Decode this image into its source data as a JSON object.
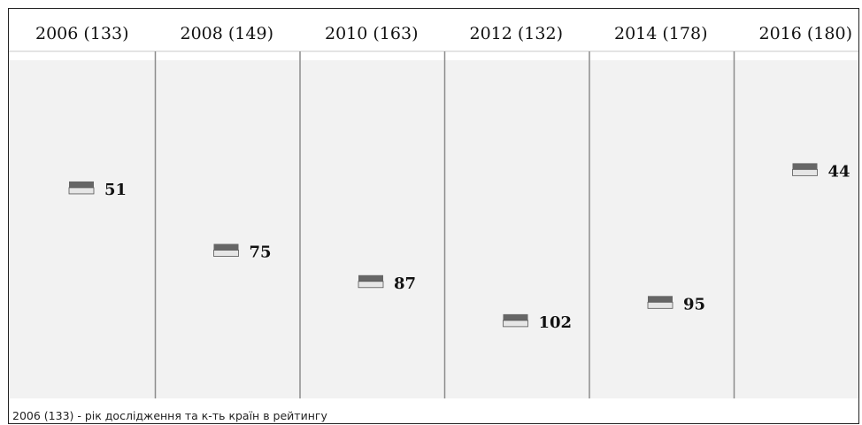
{
  "chart_data": {
    "type": "scatter",
    "categories": [
      "2006 (133)",
      "2008 (149)",
      "2010 (163)",
      "2012 (132)",
      "2014 (178)",
      "2016 (180)"
    ],
    "values": [
      51,
      75,
      87,
      102,
      95,
      44
    ],
    "colors": {
      "column_bg": "#f2f2f2",
      "divider": "#8c8c8c",
      "marker_dark": "#666666",
      "marker_light": "#e6e6e6"
    }
  },
  "caption": "2006 (133) - рік дослідження та к-ть країн в рейтингу"
}
